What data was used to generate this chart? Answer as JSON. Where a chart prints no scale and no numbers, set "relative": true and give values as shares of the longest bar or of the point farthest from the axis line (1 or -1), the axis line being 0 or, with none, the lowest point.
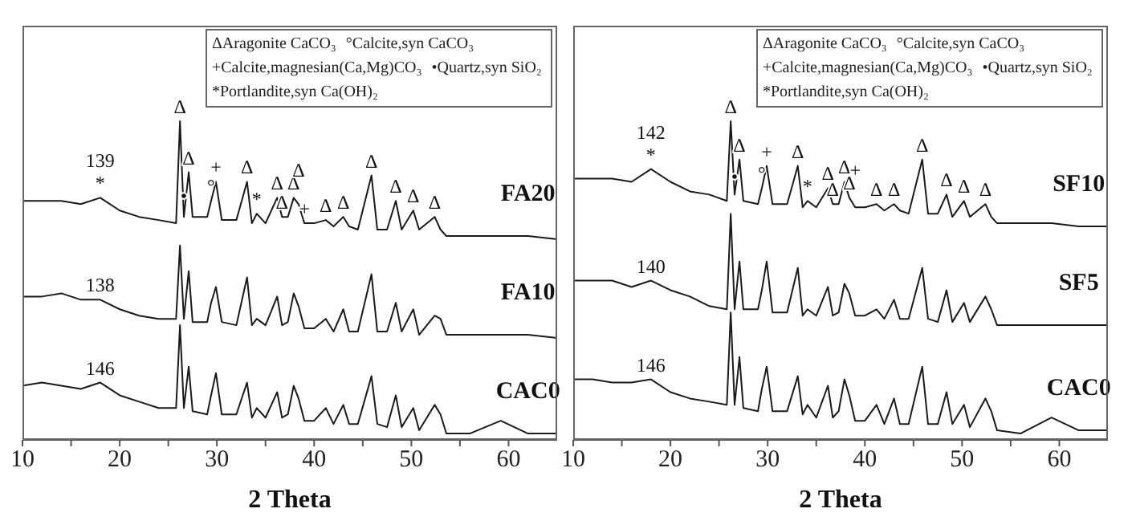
{
  "chart_data": [
    {
      "type": "line",
      "relative": true,
      "marker": "none",
      "xlabel": "2 Theta",
      "xlim": [
        10,
        65
      ],
      "xticks": [
        10,
        {
          "value": 15,
          "label": null
        },
        20,
        {
          "value": 25,
          "label": null
        },
        30,
        {
          "value": 35,
          "label": null
        },
        40,
        {
          "value": 45,
          "label": null
        },
        50,
        {
          "value": 55,
          "label": null
        },
        60
      ],
      "x": [
        10,
        12,
        14,
        16,
        18,
        20,
        22,
        24,
        25.8,
        26.2,
        26.6,
        27.1,
        27.5,
        29,
        29.4,
        29.9,
        30.5,
        32,
        33.1,
        33.6,
        34.1,
        35,
        36.2,
        36.7,
        37.3,
        37.9,
        38.4,
        39,
        40,
        41.2,
        42,
        43,
        43.6,
        44.5,
        45.9,
        46.5,
        47.5,
        48.4,
        49,
        50.2,
        50.8,
        52.4,
        53,
        53.6,
        56,
        59.2,
        62,
        65
      ],
      "series": [
        {
          "name": "FA20",
          "color": "#1a1a1a",
          "values": [
            0.75,
            0.75,
            0.75,
            0.74,
            0.76,
            0.72,
            0.7,
            0.69,
            0.68,
            1.0,
            0.7,
            0.84,
            0.7,
            0.7,
            0.75,
            0.81,
            0.69,
            0.69,
            0.81,
            0.68,
            0.71,
            0.68,
            0.76,
            0.7,
            0.7,
            0.76,
            0.74,
            0.68,
            0.68,
            0.69,
            0.67,
            0.7,
            0.67,
            0.66,
            0.83,
            0.66,
            0.66,
            0.75,
            0.66,
            0.72,
            0.66,
            0.7,
            0.66,
            0.64,
            0.64,
            0.64,
            0.64,
            0.63
          ]
        },
        {
          "name": "FA10",
          "color": "#1a1a1a",
          "values": [
            0.45,
            0.45,
            0.46,
            0.44,
            0.44,
            0.41,
            0.39,
            0.38,
            0.38,
            0.61,
            0.38,
            0.53,
            0.37,
            0.37,
            0.43,
            0.48,
            0.37,
            0.36,
            0.51,
            0.36,
            0.38,
            0.36,
            0.45,
            0.36,
            0.37,
            0.46,
            0.42,
            0.35,
            0.35,
            0.38,
            0.34,
            0.41,
            0.34,
            0.34,
            0.52,
            0.34,
            0.34,
            0.43,
            0.34,
            0.41,
            0.33,
            0.39,
            0.38,
            0.33,
            0.33,
            0.33,
            0.33,
            0.32
          ]
        },
        {
          "name": "CAC0",
          "color": "#1a1a1a",
          "values": [
            0.17,
            0.18,
            0.17,
            0.16,
            0.18,
            0.14,
            0.12,
            0.1,
            0.1,
            0.36,
            0.1,
            0.23,
            0.09,
            0.08,
            0.14,
            0.21,
            0.08,
            0.08,
            0.18,
            0.07,
            0.1,
            0.07,
            0.15,
            0.07,
            0.08,
            0.17,
            0.13,
            0.06,
            0.06,
            0.1,
            0.05,
            0.11,
            0.05,
            0.05,
            0.2,
            0.05,
            0.04,
            0.14,
            0.04,
            0.1,
            0.03,
            0.11,
            0.08,
            0.02,
            0.02,
            0.06,
            0.02,
            0.02
          ]
        }
      ],
      "annotations": [
        "ΔAragonite CaCO₃",
        "°Calcite,syn CaCO₃",
        "+Calcite,magnesian(Ca,Mg)CO₃",
        "•Quartz,syn SiO₂",
        "*Portlandite,syn Ca(OH)₂",
        {
          "text": "*",
          "x": 18,
          "y": 0.76
        },
        {
          "text": "139",
          "x": 18,
          "y": 0.76
        },
        {
          "text": "138",
          "x": 18,
          "y": 0.44
        },
        {
          "text": "146",
          "x": 18,
          "y": 0.18
        },
        {
          "text": "Δ",
          "x": 26.2,
          "y": 1.0
        },
        {
          "text": "•",
          "x": 26.6,
          "y": 0.72
        },
        {
          "text": "Δ",
          "x": 27.1,
          "y": 0.84
        },
        {
          "text": "°",
          "x": 29.4,
          "y": 0.75
        },
        {
          "text": "+",
          "x": 29.9,
          "y": 0.81
        },
        {
          "text": "Δ",
          "x": 33.1,
          "y": 0.81
        },
        {
          "text": "*",
          "x": 34.1,
          "y": 0.71
        },
        {
          "text": "Δ",
          "x": 36.2,
          "y": 0.76
        },
        {
          "text": "Δ",
          "x": 36.7,
          "y": 0.7
        },
        {
          "text": "Δ",
          "x": 37.9,
          "y": 0.76
        },
        {
          "text": "Δ",
          "x": 38.4,
          "y": 0.73
        },
        {
          "text": "+",
          "x": 39,
          "y": 0.68
        },
        {
          "text": "Δ",
          "x": 41.2,
          "y": 0.69
        },
        {
          "text": "Δ",
          "x": 43,
          "y": 0.7
        },
        {
          "text": "Δ",
          "x": 45.9,
          "y": 0.83
        },
        {
          "text": "Δ",
          "x": 48.4,
          "y": 0.75
        },
        {
          "text": "Δ",
          "x": 50.2,
          "y": 0.72
        },
        {
          "text": "Δ",
          "x": 52.4,
          "y": 0.7
        }
      ]
    },
    {
      "type": "line",
      "relative": true,
      "marker": "none",
      "xlabel": "2 Theta",
      "xlim": [
        10,
        65
      ],
      "xticks": [
        10,
        {
          "value": 15,
          "label": null
        },
        20,
        {
          "value": 25,
          "label": null
        },
        30,
        {
          "value": 35,
          "label": null
        },
        40,
        {
          "value": 45,
          "label": null
        },
        50,
        {
          "value": 55,
          "label": null
        },
        60
      ],
      "x": [
        10,
        12,
        14,
        16,
        18,
        20,
        22,
        24,
        25.8,
        26.2,
        26.6,
        27.1,
        27.5,
        29,
        29.4,
        29.9,
        30.5,
        32,
        33.1,
        33.6,
        34.1,
        35,
        36.2,
        36.7,
        37.3,
        37.9,
        38.4,
        39,
        40,
        41.2,
        42,
        43,
        43.6,
        44.5,
        45.9,
        46.5,
        47.5,
        48.4,
        49,
        50.2,
        50.8,
        52.4,
        53,
        53.6,
        56,
        59.2,
        62,
        65
      ],
      "series": [
        {
          "name": "SF10",
          "color": "#1a1a1a",
          "values": [
            0.82,
            0.82,
            0.82,
            0.81,
            0.85,
            0.81,
            0.78,
            0.77,
            0.75,
            1.0,
            0.77,
            0.88,
            0.75,
            0.74,
            0.79,
            0.86,
            0.74,
            0.74,
            0.86,
            0.73,
            0.75,
            0.73,
            0.79,
            0.74,
            0.74,
            0.81,
            0.76,
            0.73,
            0.73,
            0.74,
            0.72,
            0.74,
            0.72,
            0.71,
            0.88,
            0.71,
            0.71,
            0.77,
            0.7,
            0.75,
            0.7,
            0.74,
            0.7,
            0.68,
            0.68,
            0.68,
            0.67,
            0.67
          ]
        },
        {
          "name": "SF5",
          "color": "#1a1a1a",
          "values": [
            0.5,
            0.5,
            0.5,
            0.48,
            0.5,
            0.47,
            0.45,
            0.42,
            0.41,
            0.71,
            0.41,
            0.56,
            0.41,
            0.41,
            0.47,
            0.56,
            0.4,
            0.4,
            0.54,
            0.39,
            0.41,
            0.39,
            0.48,
            0.39,
            0.4,
            0.49,
            0.46,
            0.39,
            0.39,
            0.41,
            0.38,
            0.44,
            0.38,
            0.38,
            0.54,
            0.38,
            0.37,
            0.47,
            0.37,
            0.43,
            0.37,
            0.45,
            0.41,
            0.36,
            0.36,
            0.36,
            0.36,
            0.36
          ]
        },
        {
          "name": "CAC0",
          "color": "#1a1a1a",
          "values": [
            0.19,
            0.19,
            0.18,
            0.18,
            0.19,
            0.15,
            0.13,
            0.12,
            0.11,
            0.4,
            0.11,
            0.26,
            0.1,
            0.09,
            0.16,
            0.23,
            0.09,
            0.09,
            0.2,
            0.08,
            0.11,
            0.07,
            0.17,
            0.07,
            0.09,
            0.19,
            0.14,
            0.06,
            0.06,
            0.11,
            0.05,
            0.13,
            0.05,
            0.05,
            0.23,
            0.05,
            0.05,
            0.15,
            0.05,
            0.11,
            0.04,
            0.13,
            0.09,
            0.03,
            0.02,
            0.07,
            0.03,
            0.03
          ]
        }
      ],
      "annotations": [
        "ΔAragonite CaCO₃",
        "°Calcite,syn CaCO₃",
        "+Calcite,magnesian(Ca,Mg)CO₃",
        "•Quartz,syn SiO₂",
        "*Portlandite,syn Ca(OH)₂",
        {
          "text": "*",
          "x": 18,
          "y": 0.85
        },
        {
          "text": "142",
          "x": 18,
          "y": 0.85
        },
        {
          "text": "140",
          "x": 18,
          "y": 0.5
        },
        {
          "text": "146",
          "x": 18,
          "y": 0.19
        },
        {
          "text": "Δ",
          "x": 26.2,
          "y": 1.0
        },
        {
          "text": "•",
          "x": 26.6,
          "y": 0.78
        },
        {
          "text": "Δ",
          "x": 27.1,
          "y": 0.88
        },
        {
          "text": "°",
          "x": 29.4,
          "y": 0.79
        },
        {
          "text": "+",
          "x": 29.9,
          "y": 0.86
        },
        {
          "text": "Δ",
          "x": 33.1,
          "y": 0.86
        },
        {
          "text": "*",
          "x": 34.1,
          "y": 0.75
        },
        {
          "text": "Δ",
          "x": 36.2,
          "y": 0.79
        },
        {
          "text": "Δ",
          "x": 36.7,
          "y": 0.74
        },
        {
          "text": "Δ",
          "x": 37.9,
          "y": 0.81
        },
        {
          "text": "Δ",
          "x": 38.4,
          "y": 0.76
        },
        {
          "text": "+",
          "x": 39,
          "y": 0.73
        },
        {
          "text": "Δ",
          "x": 41.2,
          "y": 0.74
        },
        {
          "text": "Δ",
          "x": 43,
          "y": 0.74
        },
        {
          "text": "Δ",
          "x": 45.9,
          "y": 0.88
        },
        {
          "text": "Δ",
          "x": 48.4,
          "y": 0.77
        },
        {
          "text": "Δ",
          "x": 50.2,
          "y": 0.75
        },
        {
          "text": "Δ",
          "x": 52.4,
          "y": 0.74
        }
      ]
    }
  ]
}
